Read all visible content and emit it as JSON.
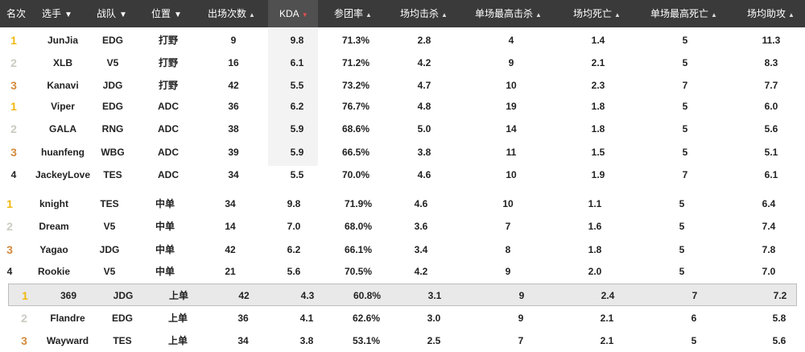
{
  "header": {
    "rank": "名次",
    "player": "选手",
    "team": "战队",
    "position": "位置",
    "games": "出场次数",
    "kda": "KDA",
    "kp": "参团率",
    "avg_kills": "场均击杀",
    "max_kills": "单场最高击杀",
    "avg_deaths": "场均死亡",
    "max_deaths": "单场最高死亡",
    "avg_assists": "场均助攻"
  },
  "rows": [
    {
      "rank": "1",
      "player": "JunJia",
      "team": "EDG",
      "position": "打野",
      "games": "9",
      "kda": "9.8",
      "kp": "71.3%",
      "avg_kills": "2.8",
      "max_kills": "4",
      "avg_deaths": "1.4",
      "max_deaths": "5",
      "avg_assists": "11.3"
    },
    {
      "rank": "2",
      "player": "XLB",
      "team": "V5",
      "position": "打野",
      "games": "16",
      "kda": "6.1",
      "kp": "71.2%",
      "avg_kills": "4.2",
      "max_kills": "9",
      "avg_deaths": "2.1",
      "max_deaths": "5",
      "avg_assists": "8.3"
    },
    {
      "rank": "3",
      "player": "Kanavi",
      "team": "JDG",
      "position": "打野",
      "games": "42",
      "kda": "5.5",
      "kp": "73.2%",
      "avg_kills": "4.7",
      "max_kills": "10",
      "avg_deaths": "2.3",
      "max_deaths": "7",
      "avg_assists": "7.7"
    },
    {
      "rank": "1",
      "player": "Viper",
      "team": "EDG",
      "position": "ADC",
      "games": "36",
      "kda": "6.2",
      "kp": "76.7%",
      "avg_kills": "4.8",
      "max_kills": "19",
      "avg_deaths": "1.8",
      "max_deaths": "5",
      "avg_assists": "6.0"
    },
    {
      "rank": "2",
      "player": "GALA",
      "team": "RNG",
      "position": "ADC",
      "games": "38",
      "kda": "5.9",
      "kp": "68.6%",
      "avg_kills": "5.0",
      "max_kills": "14",
      "avg_deaths": "1.8",
      "max_deaths": "5",
      "avg_assists": "5.6"
    },
    {
      "rank": "3",
      "player": "huanfeng",
      "team": "WBG",
      "position": "ADC",
      "games": "39",
      "kda": "5.9",
      "kp": "66.5%",
      "avg_kills": "3.8",
      "max_kills": "11",
      "avg_deaths": "1.5",
      "max_deaths": "5",
      "avg_assists": "5.1"
    },
    {
      "rank": "4",
      "player": "JackeyLove",
      "team": "TES",
      "position": "ADC",
      "games": "34",
      "kda": "5.5",
      "kp": "70.0%",
      "avg_kills": "4.6",
      "max_kills": "10",
      "avg_deaths": "1.9",
      "max_deaths": "7",
      "avg_assists": "6.1"
    },
    {
      "rank": "1",
      "player": "knight",
      "team": "TES",
      "position": "中单",
      "games": "34",
      "kda": "9.8",
      "kp": "71.9%",
      "avg_kills": "4.6",
      "max_kills": "10",
      "avg_deaths": "1.1",
      "max_deaths": "5",
      "avg_assists": "6.4"
    },
    {
      "rank": "2",
      "player": "Dream",
      "team": "V5",
      "position": "中单",
      "games": "14",
      "kda": "7.0",
      "kp": "68.0%",
      "avg_kills": "3.6",
      "max_kills": "7",
      "avg_deaths": "1.6",
      "max_deaths": "5",
      "avg_assists": "7.4"
    },
    {
      "rank": "3",
      "player": "Yagao",
      "team": "JDG",
      "position": "中单",
      "games": "42",
      "kda": "6.2",
      "kp": "66.1%",
      "avg_kills": "3.4",
      "max_kills": "8",
      "avg_deaths": "1.8",
      "max_deaths": "5",
      "avg_assists": "7.8"
    },
    {
      "rank": "4",
      "player": "Rookie",
      "team": "V5",
      "position": "中单",
      "games": "21",
      "kda": "5.6",
      "kp": "70.5%",
      "avg_kills": "4.2",
      "max_kills": "9",
      "avg_deaths": "2.0",
      "max_deaths": "5",
      "avg_assists": "7.0"
    },
    {
      "rank": "1",
      "player": "369",
      "team": "JDG",
      "position": "上单",
      "games": "42",
      "kda": "4.3",
      "kp": "60.8%",
      "avg_kills": "3.1",
      "max_kills": "9",
      "avg_deaths": "2.4",
      "max_deaths": "7",
      "avg_assists": "7.2"
    },
    {
      "rank": "2",
      "player": "Flandre",
      "team": "EDG",
      "position": "上单",
      "games": "36",
      "kda": "4.1",
      "kp": "62.6%",
      "avg_kills": "3.0",
      "max_kills": "9",
      "avg_deaths": "2.1",
      "max_deaths": "6",
      "avg_assists": "5.8"
    },
    {
      "rank": "3",
      "player": "Wayward",
      "team": "TES",
      "position": "上单",
      "games": "34",
      "kda": "3.8",
      "kp": "53.1%",
      "avg_kills": "2.5",
      "max_kills": "7",
      "avg_deaths": "2.1",
      "max_deaths": "5",
      "avg_assists": "5.6"
    }
  ],
  "colors": {
    "header_bg": "#3a3a3a",
    "gold": "#f2b80f",
    "silver": "#c8ccc0",
    "bronze": "#d48a3c",
    "sort_active": "#e05050"
  },
  "icons": {
    "filter": "funnel-icon",
    "sort": "sort-arrows-icon"
  }
}
